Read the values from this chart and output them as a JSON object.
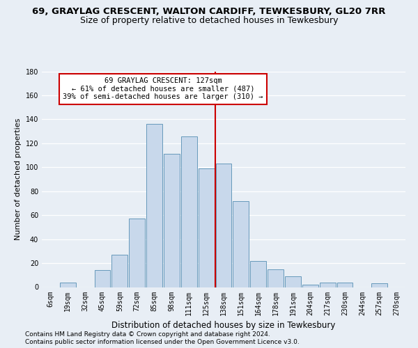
{
  "title1": "69, GRAYLAG CRESCENT, WALTON CARDIFF, TEWKESBURY, GL20 7RR",
  "title2": "Size of property relative to detached houses in Tewkesbury",
  "xlabel": "Distribution of detached houses by size in Tewkesbury",
  "ylabel": "Number of detached properties",
  "bar_labels": [
    "6sqm",
    "19sqm",
    "32sqm",
    "45sqm",
    "59sqm",
    "72sqm",
    "85sqm",
    "98sqm",
    "111sqm",
    "125sqm",
    "138sqm",
    "151sqm",
    "164sqm",
    "178sqm",
    "191sqm",
    "204sqm",
    "217sqm",
    "230sqm",
    "244sqm",
    "257sqm",
    "270sqm"
  ],
  "bar_values": [
    0,
    4,
    0,
    14,
    27,
    57,
    136,
    111,
    126,
    99,
    103,
    72,
    22,
    15,
    9,
    2,
    4,
    4,
    0,
    3,
    0
  ],
  "bar_color": "#c8d8eb",
  "bar_edge_color": "#6699bb",
  "vline_color": "#cc0000",
  "ylim": [
    0,
    180
  ],
  "yticks": [
    0,
    20,
    40,
    60,
    80,
    100,
    120,
    140,
    160,
    180
  ],
  "property_label": "69 GRAYLAG CRESCENT: 127sqm",
  "smaller_pct": "61% of detached houses are smaller (487)",
  "larger_pct": "39% of semi-detached houses are larger (310)",
  "footer1": "Contains HM Land Registry data © Crown copyright and database right 2024.",
  "footer2": "Contains public sector information licensed under the Open Government Licence v3.0.",
  "bg_color": "#e8eef5",
  "plot_bg_color": "#e8eef5",
  "grid_color": "#ffffff",
  "title1_fontsize": 9.5,
  "title2_fontsize": 9,
  "xlabel_fontsize": 8.5,
  "ylabel_fontsize": 8,
  "tick_fontsize": 7,
  "footer_fontsize": 6.5,
  "ann_fontsize": 7.5
}
